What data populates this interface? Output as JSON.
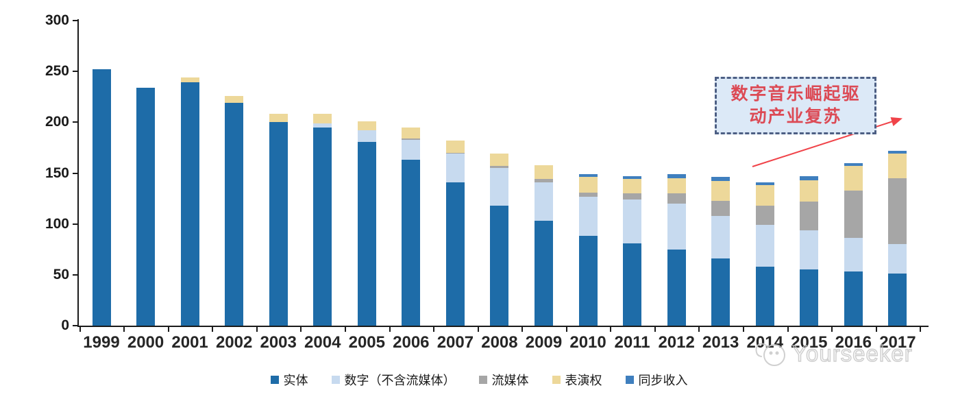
{
  "chart_data": {
    "type": "bar",
    "stacked": true,
    "title": "",
    "xlabel": "",
    "ylabel": "",
    "ylim": [
      0,
      300
    ],
    "ytick_step": 50,
    "grid": false,
    "legend_position": "bottom",
    "categories": [
      "1999",
      "2000",
      "2001",
      "2002",
      "2003",
      "2004",
      "2005",
      "2006",
      "2007",
      "2008",
      "2009",
      "2010",
      "2011",
      "2012",
      "2013",
      "2014",
      "2015",
      "2016",
      "2017"
    ],
    "series": [
      {
        "name": "实体",
        "color": "#1E6CA8",
        "values": [
          252,
          234,
          239,
          219,
          200,
          195,
          181,
          163,
          141,
          118,
          103,
          88,
          81,
          75,
          66,
          58,
          55,
          53,
          51
        ]
      },
      {
        "name": "数字（不含流媒体）",
        "color": "#C7DAEF",
        "values": [
          0,
          0,
          0,
          0,
          0,
          4,
          11,
          20,
          28,
          37,
          38,
          39,
          43,
          45,
          42,
          41,
          39,
          33,
          29
        ]
      },
      {
        "name": "流媒体",
        "color": "#A6A6A6",
        "values": [
          0,
          0,
          0,
          0,
          0,
          0,
          0,
          1,
          1,
          2,
          3,
          4,
          6,
          10,
          15,
          19,
          28,
          47,
          65
        ]
      },
      {
        "name": "表演权",
        "color": "#EDD89A",
        "values": [
          0,
          0,
          5,
          7,
          8,
          9,
          9,
          11,
          12,
          12,
          14,
          15,
          14,
          15,
          19,
          20,
          21,
          24,
          24
        ]
      },
      {
        "name": "同步收入",
        "color": "#3F7FBE",
        "values": [
          0,
          0,
          0,
          0,
          0,
          0,
          0,
          0,
          0,
          0,
          0,
          3,
          3,
          4,
          4,
          3,
          4,
          3,
          3
        ]
      }
    ]
  },
  "annotation": {
    "line1": "数字音乐崛起驱",
    "line2": "动产业复苏",
    "accent_color": "#dc4a55",
    "box_fill": "#dce9f7",
    "box_border": "#4d5f84"
  },
  "watermark": {
    "text": "Yourseeker"
  }
}
